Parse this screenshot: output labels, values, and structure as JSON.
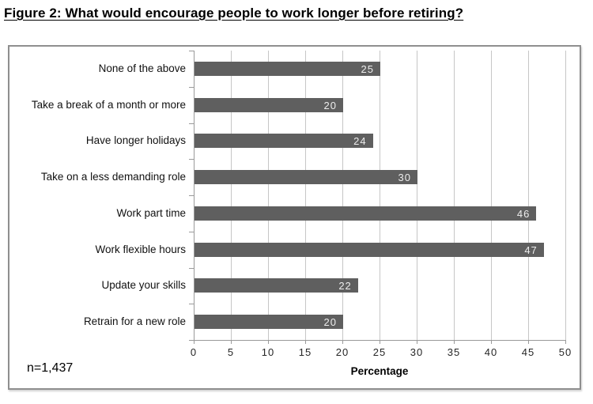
{
  "page": {
    "title": "Figure 2: What would encourage people to work longer before retiring?"
  },
  "chart_data": {
    "type": "bar",
    "orientation": "horizontal",
    "title": "Figure 2: What would encourage people to work longer before retiring?",
    "categories": [
      "None of the above",
      "Take a break of a month or more",
      "Have longer holidays",
      "Take on a less demanding role",
      "Work part time",
      "Work flexible hours",
      "Update your skills",
      "Retrain for a new role"
    ],
    "values": [
      25,
      20,
      24,
      30,
      46,
      47,
      22,
      20
    ],
    "xlabel": "Percentage",
    "ylabel": "",
    "xlim": [
      0,
      50
    ],
    "xticks": [
      0,
      5,
      10,
      15,
      20,
      25,
      30,
      35,
      40,
      45,
      50
    ],
    "grid": true,
    "legend": false,
    "note": "n=1,437",
    "bar_color": "#5f5f5f",
    "value_label_color": "#ededed",
    "gridline_color": "#c6c6c6",
    "axis_color": "#9a9a9a"
  }
}
